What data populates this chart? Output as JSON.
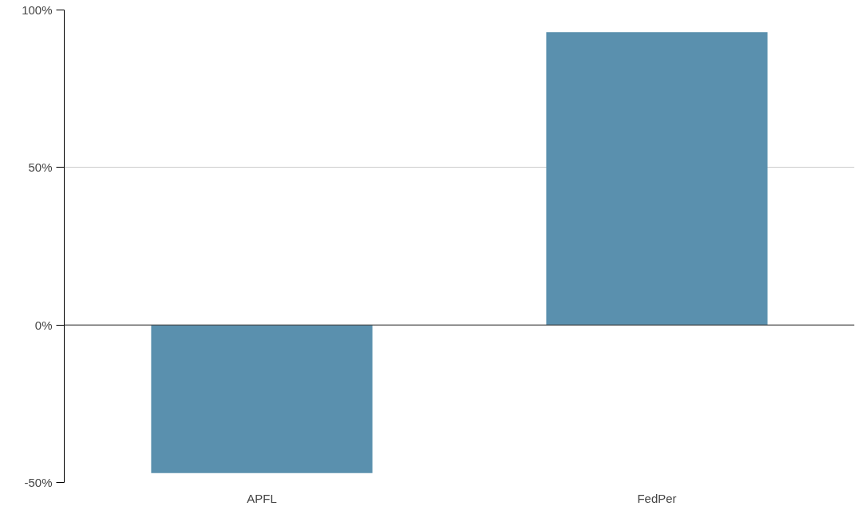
{
  "chart_data": {
    "type": "bar",
    "categories": [
      "APFL",
      "FedPer"
    ],
    "values": [
      -47,
      93
    ],
    "color": "#5a90ae",
    "ylim": [
      -50,
      100
    ],
    "yticks": [
      {
        "value": -50,
        "label": "-50%"
      },
      {
        "value": 0,
        "label": "0%"
      },
      {
        "value": 50,
        "label": "50%"
      },
      {
        "value": 100,
        "label": "100%"
      }
    ],
    "grid": "y"
  }
}
